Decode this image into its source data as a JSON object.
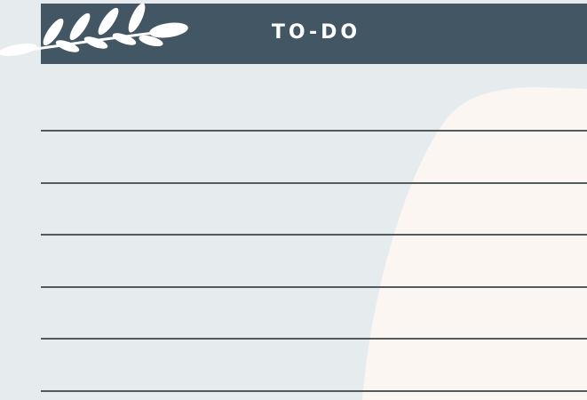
{
  "header": {
    "title": "TO-DO"
  }
}
